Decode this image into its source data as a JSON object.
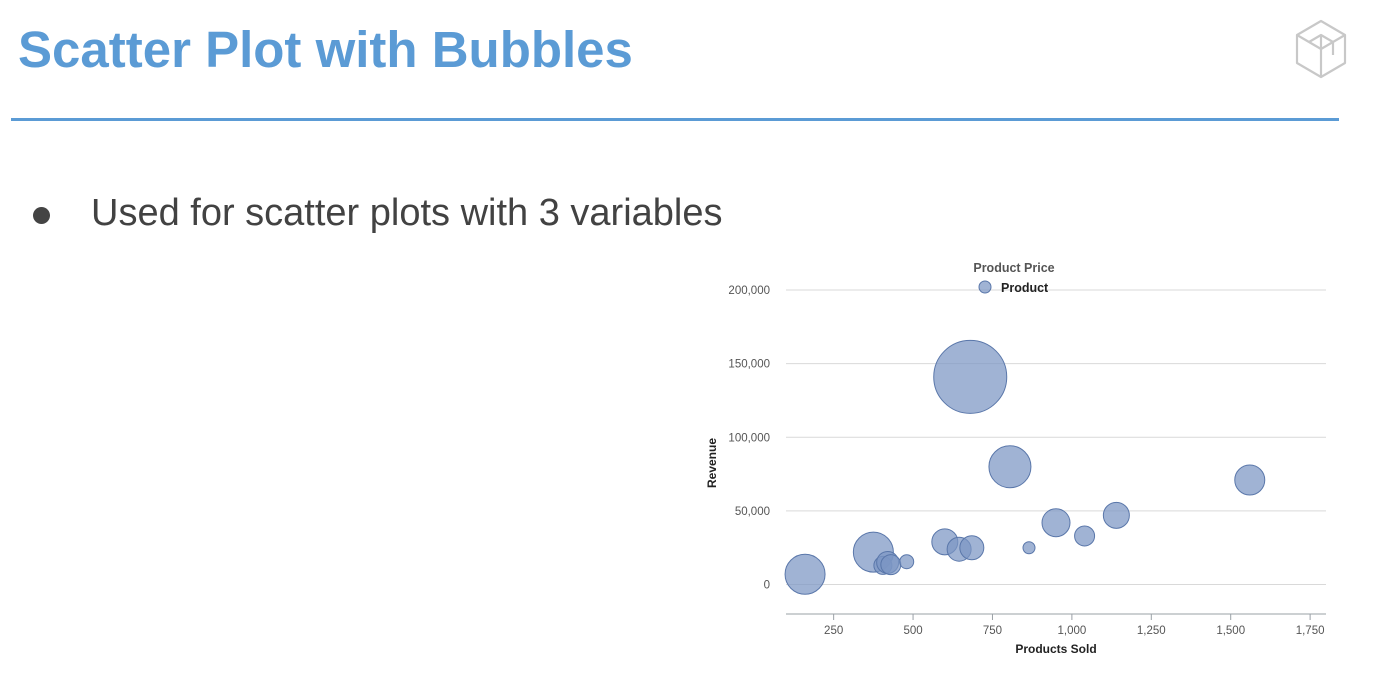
{
  "slide": {
    "title": "Scatter Plot with Bubbles",
    "bullet": "Used for scatter plots with 3 variables",
    "colors": {
      "title": "#5b9bd5",
      "rule": "#5b9bd5",
      "text": "#424242",
      "logo": "#c8c8c8"
    },
    "logo_icon": "cube-logo-icon"
  },
  "chart_data": {
    "type": "scatter",
    "title": "Product Price",
    "xlabel": "Products Sold",
    "ylabel": "Revenue",
    "xlim": [
      100,
      1800
    ],
    "ylim": [
      -20000,
      200000
    ],
    "xticks": [
      250,
      500,
      750,
      1000,
      1250,
      1500,
      1750
    ],
    "xtick_labels": [
      "250",
      "500",
      "750",
      "1,000",
      "1,250",
      "1,500",
      "1,750"
    ],
    "yticks": [
      0,
      50000,
      100000,
      150000,
      200000
    ],
    "ytick_labels": [
      "0",
      "50,000",
      "100,000",
      "150,000",
      "200,000"
    ],
    "grid": true,
    "legend_position": "top-center",
    "colors": {
      "bubble_fill": "#7b96c4",
      "bubble_stroke": "#5a77aa"
    },
    "series": [
      {
        "name": "Product",
        "points": [
          {
            "x": 160,
            "y": 7000,
            "size": 40
          },
          {
            "x": 375,
            "y": 22000,
            "size": 40
          },
          {
            "x": 405,
            "y": 13000,
            "size": 18
          },
          {
            "x": 420,
            "y": 15000,
            "size": 22
          },
          {
            "x": 430,
            "y": 13500,
            "size": 20
          },
          {
            "x": 480,
            "y": 15500,
            "size": 14
          },
          {
            "x": 600,
            "y": 29000,
            "size": 26
          },
          {
            "x": 645,
            "y": 24000,
            "size": 24
          },
          {
            "x": 685,
            "y": 25000,
            "size": 24
          },
          {
            "x": 680,
            "y": 141000,
            "size": 73
          },
          {
            "x": 805,
            "y": 80000,
            "size": 42
          },
          {
            "x": 865,
            "y": 25000,
            "size": 12
          },
          {
            "x": 950,
            "y": 42000,
            "size": 28
          },
          {
            "x": 1040,
            "y": 33000,
            "size": 20
          },
          {
            "x": 1140,
            "y": 47000,
            "size": 26
          },
          {
            "x": 1560,
            "y": 71000,
            "size": 30
          }
        ]
      }
    ]
  }
}
